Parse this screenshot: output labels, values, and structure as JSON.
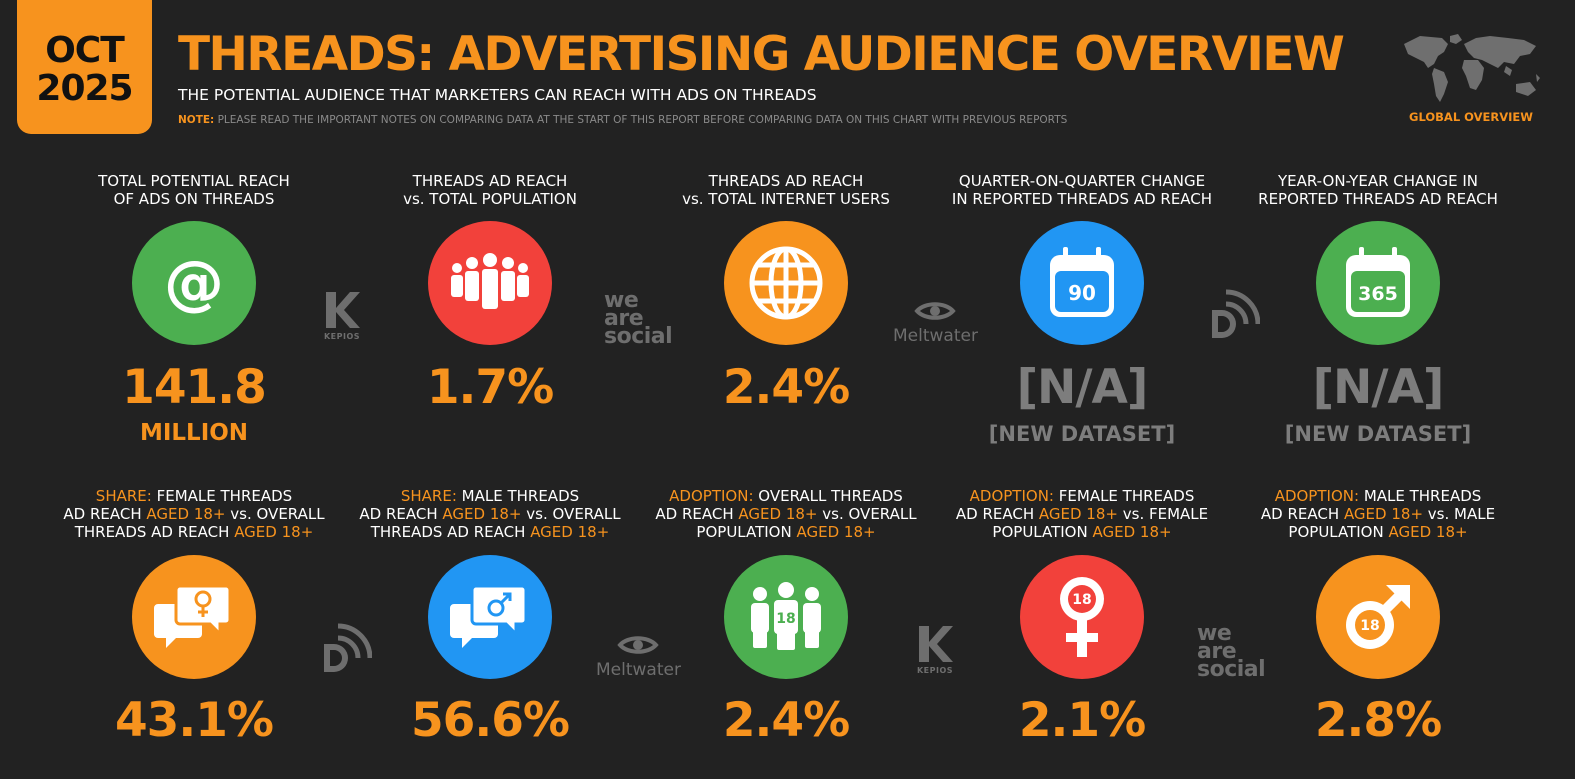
{
  "header": {
    "date_line1": "OCT",
    "date_line2": "2025",
    "title": "THREADS: ADVERTISING AUDIENCE OVERVIEW",
    "subtitle": "THE POTENTIAL AUDIENCE THAT MARKETERS CAN REACH WITH ADS ON THREADS",
    "note_prefix": "NOTE:",
    "note_text": "PLEASE READ THE IMPORTANT NOTES ON COMPARING DATA AT THE START OF THIS REPORT BEFORE COMPARING DATA ON THIS CHART WITH PREVIOUS REPORTS",
    "global_label": "GLOBAL OVERVIEW",
    "map_icon": "world-map-icon"
  },
  "colors": {
    "orange": "#F7931E",
    "green": "#4CAF50",
    "red": "#F2413B",
    "blue": "#2196F3",
    "background": "#222222",
    "muted": "#7d7d7d"
  },
  "top_row": [
    {
      "label_l1": "TOTAL POTENTIAL REACH",
      "label_l2": "OF ADS ON THREADS",
      "icon": "threads-logo-icon",
      "value": "141.8",
      "unit": "MILLION"
    },
    {
      "label_l1": "THREADS AD REACH",
      "label_l2": "vs. TOTAL POPULATION",
      "icon": "population-icon",
      "value": "1.7%"
    },
    {
      "label_l1": "THREADS AD REACH",
      "label_l2": "vs. TOTAL INTERNET USERS",
      "icon": "globe-icon",
      "value": "2.4%"
    },
    {
      "label_l1": "QUARTER-ON-QUARTER CHANGE",
      "label_l2": "IN REPORTED THREADS AD REACH",
      "icon": "calendar-icon",
      "icon_text": "90",
      "value": "[N/A]",
      "unit": "[NEW DATASET]"
    },
    {
      "label_l1": "YEAR-ON-YEAR CHANGE IN",
      "label_l2": "REPORTED THREADS AD REACH",
      "icon": "calendar-icon",
      "icon_text": "365",
      "value": "[N/A]",
      "unit": "[NEW DATASET]"
    }
  ],
  "bottom_row": [
    {
      "prefix": "SHARE:",
      "l1": "FEMALE THREADS",
      "l2a": "AD REACH",
      "l2hl": "AGED 18+",
      "l2b": "vs. OVERALL",
      "l3a": "THREADS AD REACH",
      "l3hl": "AGED 18+",
      "icon": "female-chat-icon",
      "value": "43.1%"
    },
    {
      "prefix": "SHARE:",
      "l1": "MALE THREADS",
      "l2a": "AD REACH",
      "l2hl": "AGED 18+",
      "l2b": "vs. OVERALL",
      "l3a": "THREADS AD REACH",
      "l3hl": "AGED 18+",
      "icon": "male-chat-icon",
      "value": "56.6%"
    },
    {
      "prefix": "ADOPTION:",
      "l1": "OVERALL THREADS",
      "l2a": "AD REACH",
      "l2hl": "AGED 18+",
      "l2b": "vs. OVERALL",
      "l3a": "POPULATION",
      "l3hl": "AGED 18+",
      "icon": "adult-population-icon",
      "icon_text": "18",
      "value": "2.4%"
    },
    {
      "prefix": "ADOPTION:",
      "l1": "FEMALE THREADS",
      "l2a": "AD REACH",
      "l2hl": "AGED 18+",
      "l2b": "vs. FEMALE",
      "l3a": "POPULATION",
      "l3hl": "AGED 18+",
      "icon": "female-symbol-icon",
      "icon_text": "18",
      "value": "2.1%"
    },
    {
      "prefix": "ADOPTION:",
      "l1": "MALE THREADS",
      "l2a": "AD REACH",
      "l2hl": "AGED 18+",
      "l2b": "vs. MALE",
      "l3a": "POPULATION",
      "l3hl": "AGED 18+",
      "icon": "male-symbol-icon",
      "icon_text": "18",
      "value": "2.8%"
    }
  ],
  "partner_logos": {
    "kepios": "KEPIOS",
    "wearesocial_l1": "we",
    "wearesocial_l2": "are",
    "wearesocial_l3": "social",
    "meltwater": "Meltwater"
  }
}
